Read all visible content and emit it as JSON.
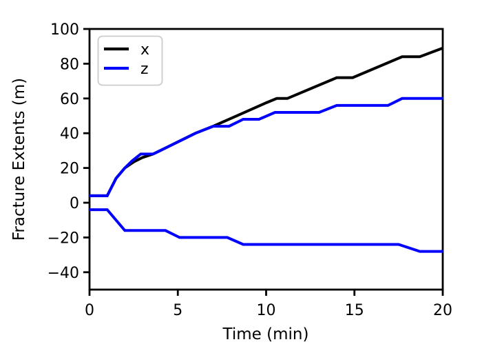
{
  "chart_data": {
    "type": "line",
    "title": "",
    "xlabel": "Time (min)",
    "ylabel": "Fracture Extents (m)",
    "xlim": [
      0,
      20
    ],
    "ylim": [
      -50,
      100
    ],
    "grid": false,
    "x_ticks": {
      "values": [
        0,
        5,
        10,
        15,
        20
      ],
      "labels": [
        "0",
        "5",
        "10",
        "15",
        "20"
      ]
    },
    "y_ticks": {
      "values": [
        -40,
        -20,
        0,
        20,
        40,
        60,
        80,
        100
      ],
      "labels": [
        "−40",
        "−20",
        "0",
        "20",
        "40",
        "60",
        "80",
        "100"
      ]
    },
    "legend": {
      "position": "upper left",
      "entries": [
        {
          "label": "x",
          "color": "#000000"
        },
        {
          "label": "z",
          "color": "#0000ff"
        }
      ]
    },
    "series": [
      {
        "name": "x",
        "color": "#000000",
        "points": [
          [
            0,
            4
          ],
          [
            1,
            4
          ],
          [
            1.5,
            14
          ],
          [
            2,
            20
          ],
          [
            2.5,
            23.5
          ],
          [
            3,
            26
          ],
          [
            3.6,
            28
          ],
          [
            4,
            30
          ],
          [
            5,
            35
          ],
          [
            6,
            40
          ],
          [
            7,
            44
          ],
          [
            8,
            48.5
          ],
          [
            9,
            53
          ],
          [
            10,
            57.5
          ],
          [
            10.6,
            60
          ],
          [
            11.2,
            60
          ],
          [
            14,
            72
          ],
          [
            14.9,
            72
          ],
          [
            17.7,
            84
          ],
          [
            18.7,
            84
          ],
          [
            20,
            89
          ]
        ]
      },
      {
        "name": "z-upper",
        "legend_label": "z",
        "color": "#0000ff",
        "points": [
          [
            0,
            4
          ],
          [
            1,
            4
          ],
          [
            1.5,
            14
          ],
          [
            2,
            20
          ],
          [
            2.4,
            24
          ],
          [
            2.9,
            28
          ],
          [
            3.6,
            28
          ],
          [
            4,
            30
          ],
          [
            5,
            35
          ],
          [
            6,
            40
          ],
          [
            7,
            44
          ],
          [
            7.9,
            44
          ],
          [
            8.7,
            48
          ],
          [
            9.6,
            48
          ],
          [
            10.5,
            52
          ],
          [
            13,
            52
          ],
          [
            14,
            56
          ],
          [
            16.9,
            56
          ],
          [
            17.7,
            60
          ],
          [
            20,
            60
          ]
        ]
      },
      {
        "name": "z-lower",
        "legend_label": "z",
        "color": "#0000ff",
        "points": [
          [
            0,
            -4
          ],
          [
            1,
            -4
          ],
          [
            2,
            -16
          ],
          [
            4.3,
            -16
          ],
          [
            5.1,
            -20
          ],
          [
            7.8,
            -20
          ],
          [
            8.7,
            -24
          ],
          [
            17.5,
            -24
          ],
          [
            18.7,
            -28
          ],
          [
            20,
            -28
          ]
        ]
      }
    ]
  }
}
